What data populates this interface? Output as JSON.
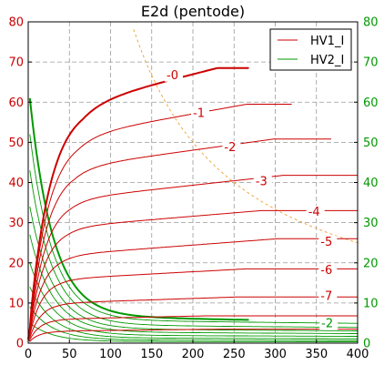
{
  "chart_data": {
    "type": "line",
    "title": "E2d (pentode)",
    "xlim": [
      0,
      400
    ],
    "ylim_left": [
      0,
      80
    ],
    "ylim_right": [
      0,
      80
    ],
    "x_ticks": [
      0,
      50,
      100,
      150,
      200,
      250,
      300,
      350,
      400
    ],
    "y_ticks": [
      0,
      10,
      20,
      30,
      40,
      50,
      60,
      70,
      80
    ],
    "grid": true,
    "legend_position": "top-right",
    "legend": [
      {
        "name": "HV1_I",
        "color": "#cc0000"
      },
      {
        "name": "HV2_I",
        "color": "#009900"
      }
    ],
    "colors": {
      "red": "#cc0000",
      "green": "#009900",
      "dissipation": "#f0a030"
    },
    "red_curves": [
      {
        "label": "-0",
        "knee": 60,
        "plateau": 58,
        "end_value": 68.5,
        "x_end": 268,
        "bold": true,
        "label_x": 168,
        "label_y": 66
      },
      {
        "label": "-1",
        "knee": 52,
        "plateau": 50,
        "end_value": 59.5,
        "x_end": 320,
        "label_x": 200,
        "label_y": 56.5
      },
      {
        "label": "-2",
        "knee": 44,
        "plateau": 42,
        "end_value": 50.8,
        "x_end": 368,
        "label_x": 238,
        "label_y": 48
      },
      {
        "label": "-3",
        "knee": 36,
        "plateau": 34,
        "end_value": 41.8,
        "x_end": 400,
        "label_x": 276,
        "label_y": 39.5
      },
      {
        "label": "-4",
        "knee": 29,
        "plateau": 27,
        "end_value": 33.0,
        "x_end": 400,
        "label_x": 340,
        "label_y": 32
      },
      {
        "label": "-5",
        "knee": 22,
        "plateau": 20.5,
        "end_value": 26.0,
        "x_end": 400,
        "label_x": 355,
        "label_y": 24.5
      },
      {
        "label": "-6",
        "knee": 16,
        "plateau": 14.5,
        "end_value": 18.5,
        "x_end": 400,
        "label_x": 355,
        "label_y": 17.5
      },
      {
        "label": "-7",
        "knee": 10,
        "plateau": 9,
        "end_value": 11.5,
        "x_end": 400,
        "label_x": 355,
        "label_y": 11
      },
      {
        "label": "",
        "knee": 6,
        "plateau": 5.2,
        "end_value": 6.8,
        "x_end": 400
      },
      {
        "label": "",
        "knee": 3,
        "plateau": 2.6,
        "end_value": 3.5,
        "x_end": 400
      }
    ],
    "green_curves": [
      {
        "peak": 61,
        "asymptote": 6.8,
        "x_end": 268,
        "bold": true
      },
      {
        "peak": 52,
        "asymptote": 5.8,
        "x_end": 400
      },
      {
        "peak": 43,
        "asymptote": 4.6,
        "x_end": 400
      },
      {
        "peak": 34,
        "asymptote": 3.6,
        "x_end": 400
      },
      {
        "peak": 27,
        "asymptote": 2.8,
        "x_end": 400
      },
      {
        "peak": 20,
        "asymptote": 2.0,
        "x_end": 400
      },
      {
        "peak": 14,
        "asymptote": 1.3,
        "x_end": 400
      },
      {
        "peak": 9,
        "asymptote": 0.8,
        "x_end": 400
      },
      {
        "peak": 5,
        "asymptote": 0.4,
        "x_end": 400
      }
    ],
    "green_label": {
      "label": "-2",
      "x": 356,
      "y": 4.2
    },
    "dissipation": {
      "watts": 10
    }
  }
}
